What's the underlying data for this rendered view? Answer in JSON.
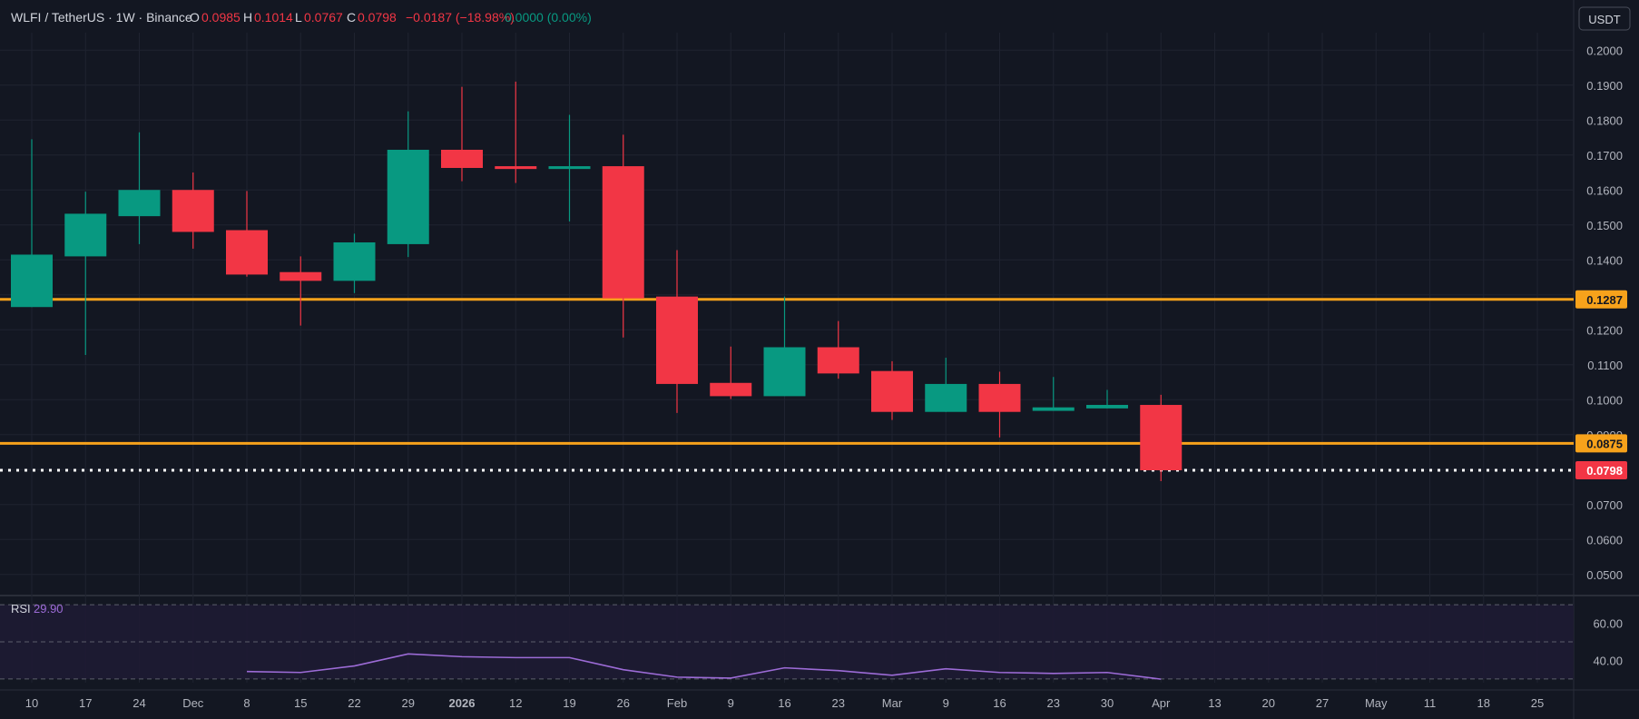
{
  "header": {
    "symbol": "WLFI / TetherUS · 1W · Binance",
    "o_label": "O",
    "o_value": "0.0985",
    "h_label": "H",
    "h_value": "0.1014",
    "l_label": "L",
    "l_value": "0.0767",
    "c_label": "C",
    "c_value": "0.0798",
    "change": "−0.0187 (−18.98%)",
    "volume": "0.0000 (0.00%)"
  },
  "currency_button": "USDT",
  "colors": {
    "background": "#131722",
    "up": "#089981",
    "down": "#f23645",
    "level_line": "#f7a21b",
    "rsi_line": "#9c6bd6",
    "rsi_band": "#1e1b33",
    "grid": "#1f2330",
    "text": "#d1d4dc",
    "axis_text": "#b2b5be"
  },
  "chart_data": {
    "type": "candlestick",
    "price_axis": {
      "min": 0.045,
      "max": 0.205,
      "ticks": [
        "0.0500",
        "0.0600",
        "0.0700",
        "0.0800",
        "0.0900",
        "0.1000",
        "0.1100",
        "0.1200",
        "0.1300",
        "0.1400",
        "0.1500",
        "0.1600",
        "0.1700",
        "0.1800",
        "0.1900",
        "0.2000"
      ]
    },
    "candles": [
      {
        "o": 0.1265,
        "h": 0.1745,
        "l": 0.1265,
        "c": 0.1415
      },
      {
        "o": 0.141,
        "h": 0.1595,
        "l": 0.1128,
        "c": 0.1532
      },
      {
        "o": 0.1525,
        "h": 0.1765,
        "l": 0.1445,
        "c": 0.16
      },
      {
        "o": 0.16,
        "h": 0.165,
        "l": 0.1432,
        "c": 0.148
      },
      {
        "o": 0.1485,
        "h": 0.1597,
        "l": 0.1352,
        "c": 0.1358
      },
      {
        "o": 0.1365,
        "h": 0.141,
        "l": 0.1212,
        "c": 0.134
      },
      {
        "o": 0.134,
        "h": 0.1475,
        "l": 0.1305,
        "c": 0.145
      },
      {
        "o": 0.1445,
        "h": 0.1825,
        "l": 0.1408,
        "c": 0.1715
      },
      {
        "o": 0.1715,
        "h": 0.1895,
        "l": 0.1625,
        "c": 0.1663
      },
      {
        "o": 0.1668,
        "h": 0.191,
        "l": 0.162,
        "c": 0.166
      },
      {
        "o": 0.166,
        "h": 0.1815,
        "l": 0.151,
        "c": 0.1668
      },
      {
        "o": 0.1668,
        "h": 0.1758,
        "l": 0.1178,
        "c": 0.129
      },
      {
        "o": 0.1295,
        "h": 0.1428,
        "l": 0.0962,
        "c": 0.1045
      },
      {
        "o": 0.1048,
        "h": 0.1152,
        "l": 0.1002,
        "c": 0.101
      },
      {
        "o": 0.101,
        "h": 0.1295,
        "l": 0.101,
        "c": 0.115
      },
      {
        "o": 0.115,
        "h": 0.1225,
        "l": 0.106,
        "c": 0.1075
      },
      {
        "o": 0.1082,
        "h": 0.111,
        "l": 0.0942,
        "c": 0.0965
      },
      {
        "o": 0.0965,
        "h": 0.112,
        "l": 0.0965,
        "c": 0.1045
      },
      {
        "o": 0.1045,
        "h": 0.108,
        "l": 0.0892,
        "c": 0.0965
      },
      {
        "o": 0.0968,
        "h": 0.1065,
        "l": 0.0968,
        "c": 0.0978
      },
      {
        "o": 0.0975,
        "h": 0.1028,
        "l": 0.0975,
        "c": 0.0985
      },
      {
        "o": 0.0985,
        "h": 0.1014,
        "l": 0.0767,
        "c": 0.0798
      }
    ],
    "levels": [
      {
        "price": 0.1287,
        "label": "0.1287",
        "style": "solid"
      },
      {
        "price": 0.0875,
        "label": "0.0875",
        "style": "solid"
      }
    ],
    "current_price": {
      "price": 0.0798,
      "label": "0.0798",
      "style": "dotted"
    },
    "x_ticks": [
      "10",
      "17",
      "24",
      "Dec",
      "8",
      "15",
      "22",
      "29",
      "2026",
      "12",
      "19",
      "26",
      "Feb",
      "9",
      "16",
      "23",
      "Mar",
      "9",
      "16",
      "23",
      "30",
      "Apr",
      "13",
      "20",
      "27",
      "May",
      "11",
      "18",
      "25"
    ],
    "rsi": {
      "label": "RSI",
      "value": "29.90",
      "axis_min": 28,
      "axis_max": 72,
      "ticks": [
        "40.00",
        "60.00"
      ],
      "band": [
        30,
        70
      ],
      "points": [
        null,
        null,
        null,
        null,
        34,
        33.5,
        37,
        43.5,
        42,
        41.5,
        41.5,
        35,
        31,
        30.5,
        36,
        34.5,
        32,
        35.5,
        33.5,
        33,
        33.5,
        29.9
      ]
    }
  }
}
